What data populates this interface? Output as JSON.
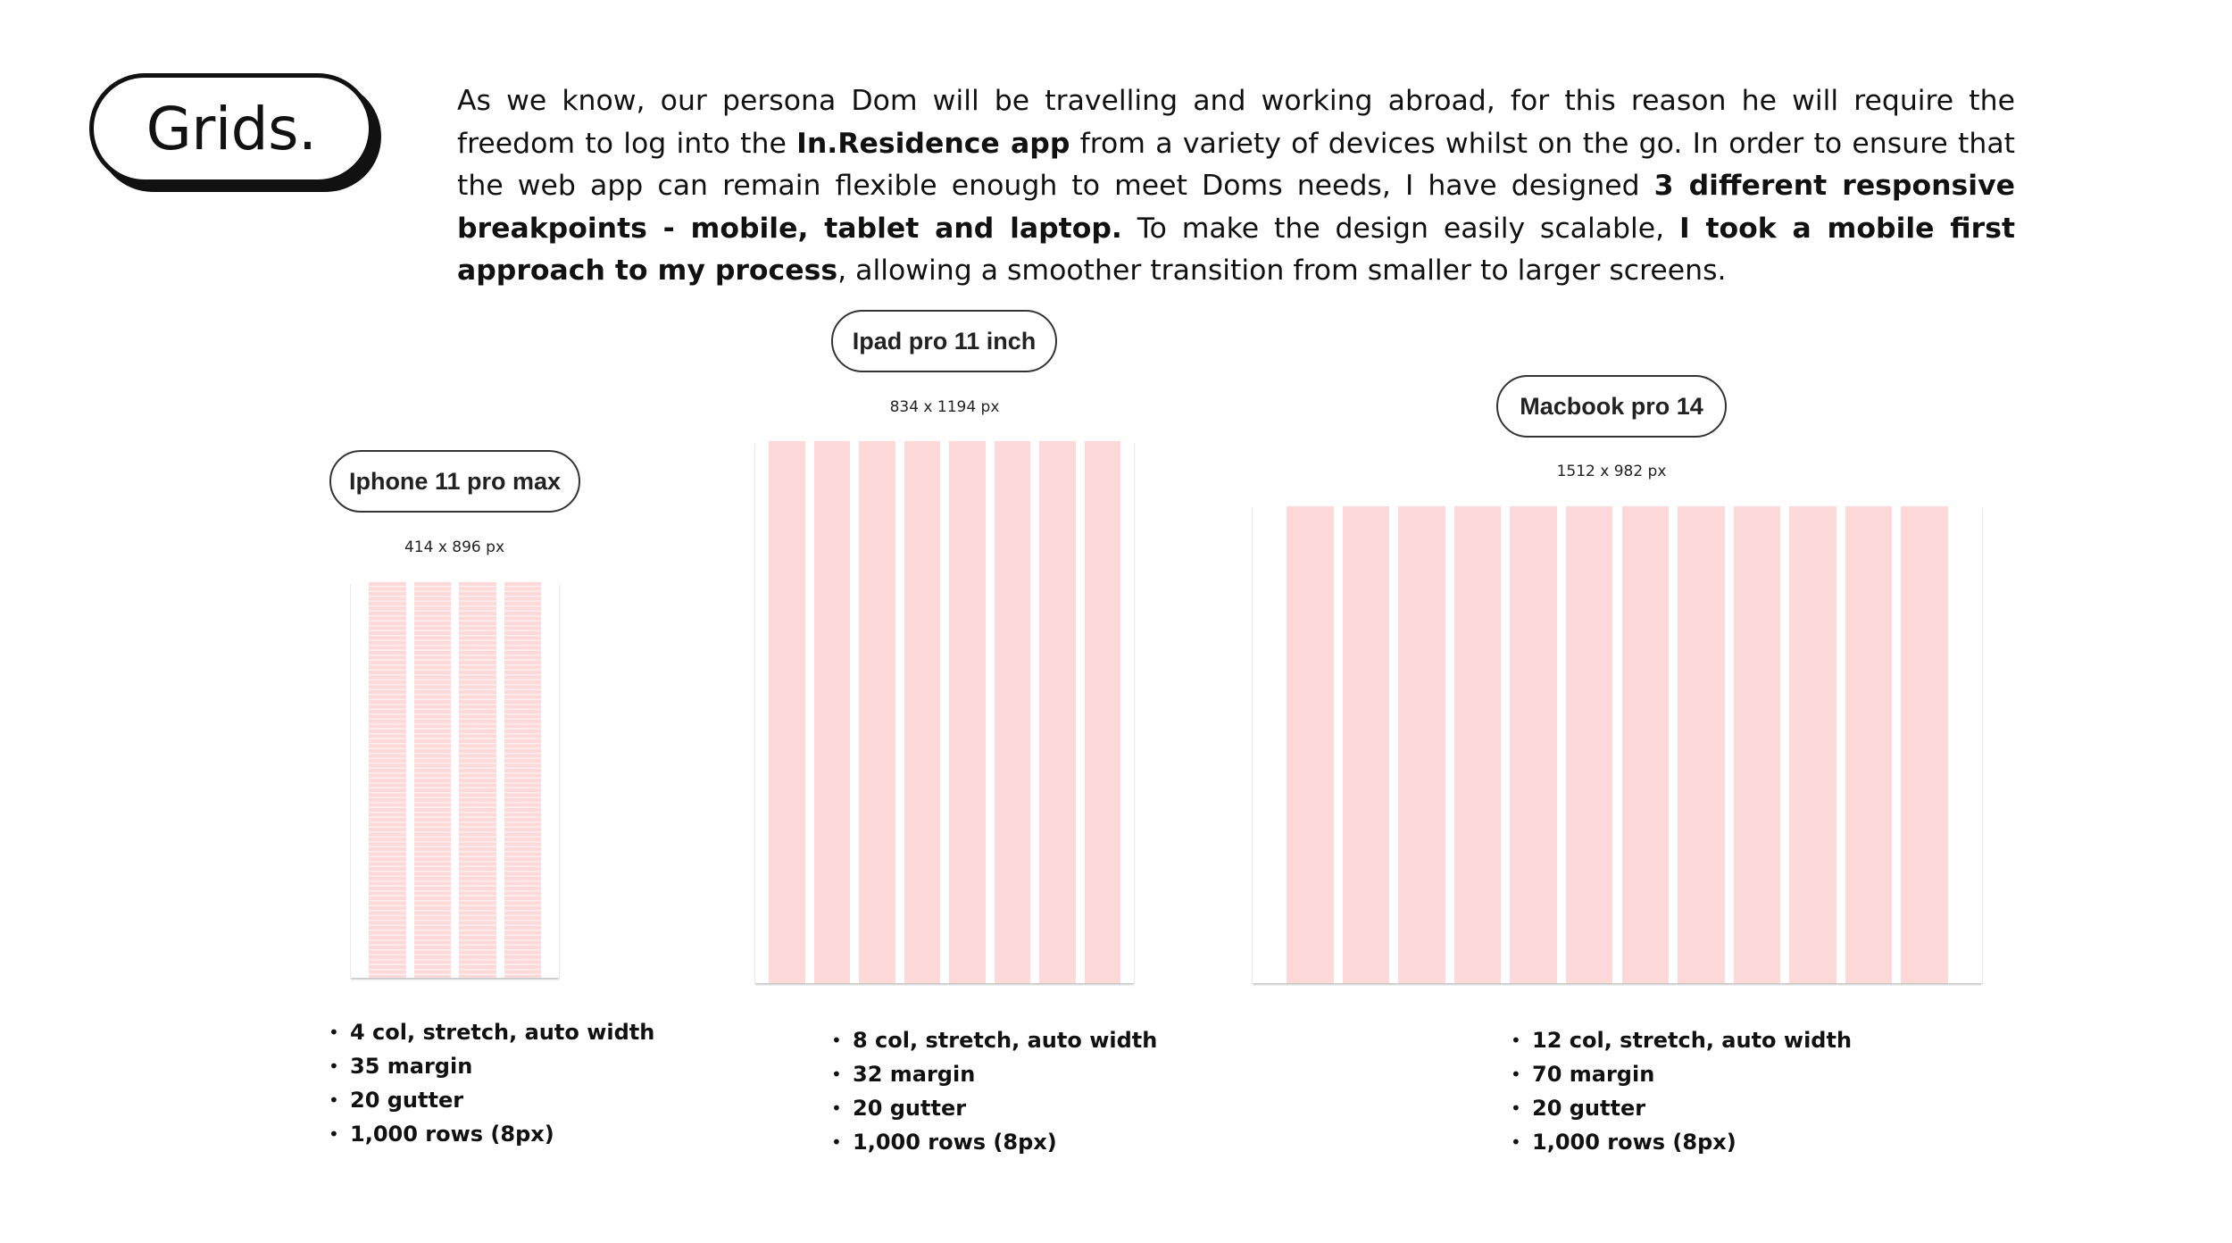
{
  "header": {
    "title": "Grids.",
    "intro": [
      {
        "text": "As we know, our persona Dom will be travelling and working abroad, for this reason he will require the freedom to log into the ",
        "bold": false
      },
      {
        "text": "In.Residence app",
        "bold": true
      },
      {
        "text": " from a variety of devices whilst on the go. In order to ensure that the web app can remain flexible enough to meet Doms needs, I have designed ",
        "bold": false
      },
      {
        "text": "3 different responsive breakpoints - mobile, tablet and laptop.",
        "bold": true
      },
      {
        "text": " To make the design easily scalable, ",
        "bold": false
      },
      {
        "text": "I took a mobile first approach to my process",
        "bold": true
      },
      {
        "text": ", allowing a smoother transition from smaller to larger screens.",
        "bold": false
      }
    ]
  },
  "devices": [
    {
      "name": "Iphone 11 pro max",
      "dimensions": "414 x 896 px",
      "columns": 4,
      "show_rows": true,
      "specs": [
        "4 col, stretch, auto width",
        "35 margin",
        "20 gutter",
        "1,000 rows (8px)"
      ]
    },
    {
      "name": "Ipad pro 11 inch",
      "dimensions": "834 x 1194 px",
      "columns": 8,
      "show_rows": false,
      "specs": [
        "8 col, stretch, auto width",
        "32 margin",
        "20 gutter",
        "1,000 rows (8px)"
      ]
    },
    {
      "name": "Macbook pro 14",
      "dimensions": "1512 x 982 px",
      "columns": 12,
      "show_rows": false,
      "specs": [
        "12 col, stretch, auto width",
        "70 margin",
        "20 gutter",
        "1,000 rows (8px)"
      ]
    }
  ],
  "colors": {
    "column_fill": "#fdd9da",
    "ink": "#111111"
  }
}
